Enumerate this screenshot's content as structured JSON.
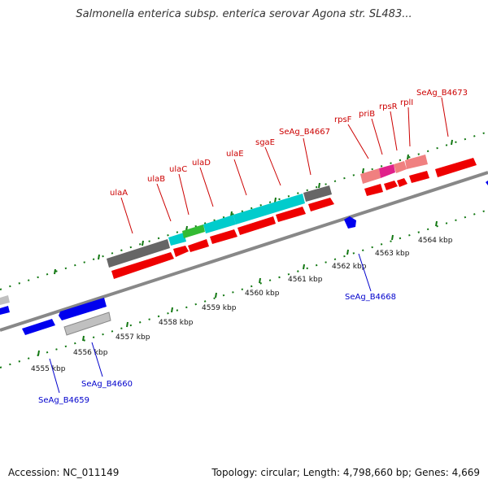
{
  "title": "Salmonella enterica subsp. enterica serovar Agona str. SL483...",
  "accession": "Accession: NC_011149",
  "topology": "Topology: circular; Length: 4,798,660 bp; Genes: 4,669",
  "colors": {
    "forward_cds": "#ff0000",
    "reverse_cds": "#0000ff",
    "pseudo": "#666666",
    "light_gray": "#c0c0c0",
    "cyan": "#00cccc",
    "green": "#33bb33",
    "pink": "#f08080",
    "magenta": "#e0218a",
    "tick_green": "#117711"
  },
  "kbp_labels": [
    "4555 kbp",
    "4556 kbp",
    "4557 kbp",
    "4558 kbp",
    "4559 kbp",
    "4560 kbp",
    "4561 kbp",
    "4562 kbp",
    "4563 kbp",
    "4564 kbp"
  ],
  "top_gene_labels": [
    "ulaA",
    "ulaB",
    "ulaC",
    "ulaD",
    "ulaE",
    "sgaE",
    "SeAg_B4667",
    "rpsF",
    "priB",
    "rpsR",
    "rplI",
    "SeAg_B4673"
  ],
  "bottom_gene_labels": [
    "SeAg_B4668",
    "SeAg_B4660",
    "SeAg_B4659"
  ]
}
